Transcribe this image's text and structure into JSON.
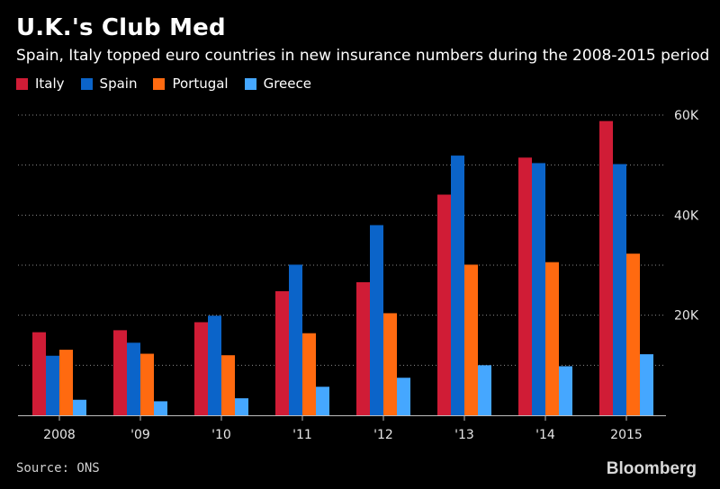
{
  "title": "U.K.'s Club Med",
  "subtitle": "Spain, Italy topped euro countries in new insurance numbers during the 2008-2015 period",
  "source": "Source: ONS",
  "brand": "Bloomberg",
  "chart_data": {
    "type": "bar",
    "title": "U.K.'s Club Med",
    "xlabel": "",
    "ylabel": "",
    "categories": [
      "2008",
      "'09",
      "'10",
      "'11",
      "'12",
      "'13",
      "'14",
      "2015"
    ],
    "series": [
      {
        "name": "Italy",
        "color": "#d01c36",
        "values": [
          16600,
          17000,
          18600,
          24800,
          26600,
          44100,
          51500,
          58800
        ]
      },
      {
        "name": "Spain",
        "color": "#0b64c9",
        "values": [
          11900,
          14500,
          19900,
          30100,
          38000,
          51900,
          50400,
          50200
        ]
      },
      {
        "name": "Portugal",
        "color": "#ff6a10",
        "values": [
          13100,
          12300,
          12000,
          16400,
          20400,
          30100,
          30600,
          32300
        ]
      },
      {
        "name": "Greece",
        "color": "#45a7ff",
        "values": [
          3100,
          2800,
          3400,
          5700,
          7500,
          10000,
          9800,
          12200
        ]
      }
    ],
    "ylim": [
      0,
      60000
    ],
    "yticks": [
      20000,
      40000,
      60000
    ],
    "ytick_labels": [
      "20K",
      "40K",
      "60K"
    ],
    "gridlines": [
      10000,
      20000,
      30000,
      40000,
      50000,
      60000
    ],
    "grid": true,
    "legend_position": "top-left"
  }
}
